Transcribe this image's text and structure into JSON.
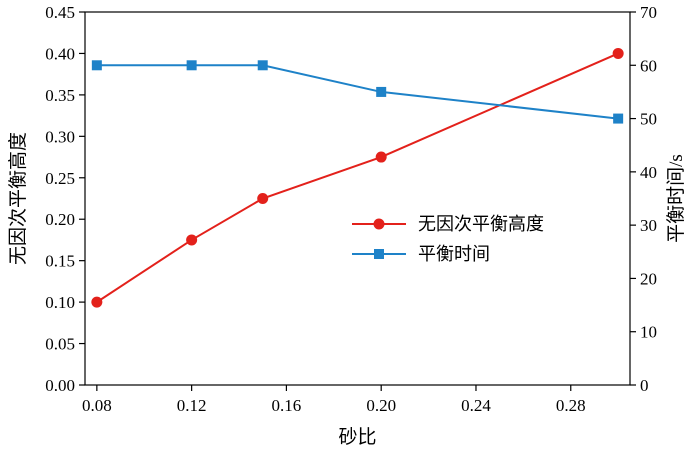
{
  "figure": {
    "background": "#ffffff"
  },
  "chart_data": {
    "type": "line",
    "title": "",
    "xlabel": "砂比",
    "ylabel_left": "无因次平衡高度",
    "ylabel_right": "平衡时间/s",
    "x": [
      0.08,
      0.12,
      0.15,
      0.2,
      0.3
    ],
    "series": [
      {
        "name": "无因次平衡高度",
        "axis": "left",
        "color": "#e3211b",
        "marker": "circle",
        "values": [
          0.1,
          0.175,
          0.225,
          0.275,
          0.4
        ]
      },
      {
        "name": "平衡时间",
        "axis": "right",
        "color": "#1e82c8",
        "marker": "square",
        "values": [
          60,
          60,
          60,
          55,
          50
        ]
      }
    ],
    "xlim": [
      0.075,
      0.305
    ],
    "xticks": [
      0.08,
      0.12,
      0.16,
      0.2,
      0.24,
      0.28
    ],
    "xtick_labels": [
      "0.08",
      "0.12",
      "0.16",
      "0.20",
      "0.24",
      "0.28"
    ],
    "ylim_left": [
      0,
      0.45
    ],
    "yticks_left": [
      0,
      0.05,
      0.1,
      0.15,
      0.2,
      0.25,
      0.3,
      0.35,
      0.4,
      0.45
    ],
    "ytick_labels_left": [
      "0.00",
      "0.05",
      "0.10",
      "0.15",
      "0.20",
      "0.25",
      "0.30",
      "0.35",
      "0.40",
      "0.45"
    ],
    "ylim_right": [
      0,
      70
    ],
    "yticks_right": [
      0,
      10,
      20,
      30,
      40,
      50,
      60,
      70
    ],
    "ytick_labels_right": [
      "0",
      "10",
      "20",
      "30",
      "40",
      "50",
      "60",
      "70"
    ],
    "grid": false,
    "legend_position": "inside-center-right",
    "axis_color": "#000000"
  }
}
